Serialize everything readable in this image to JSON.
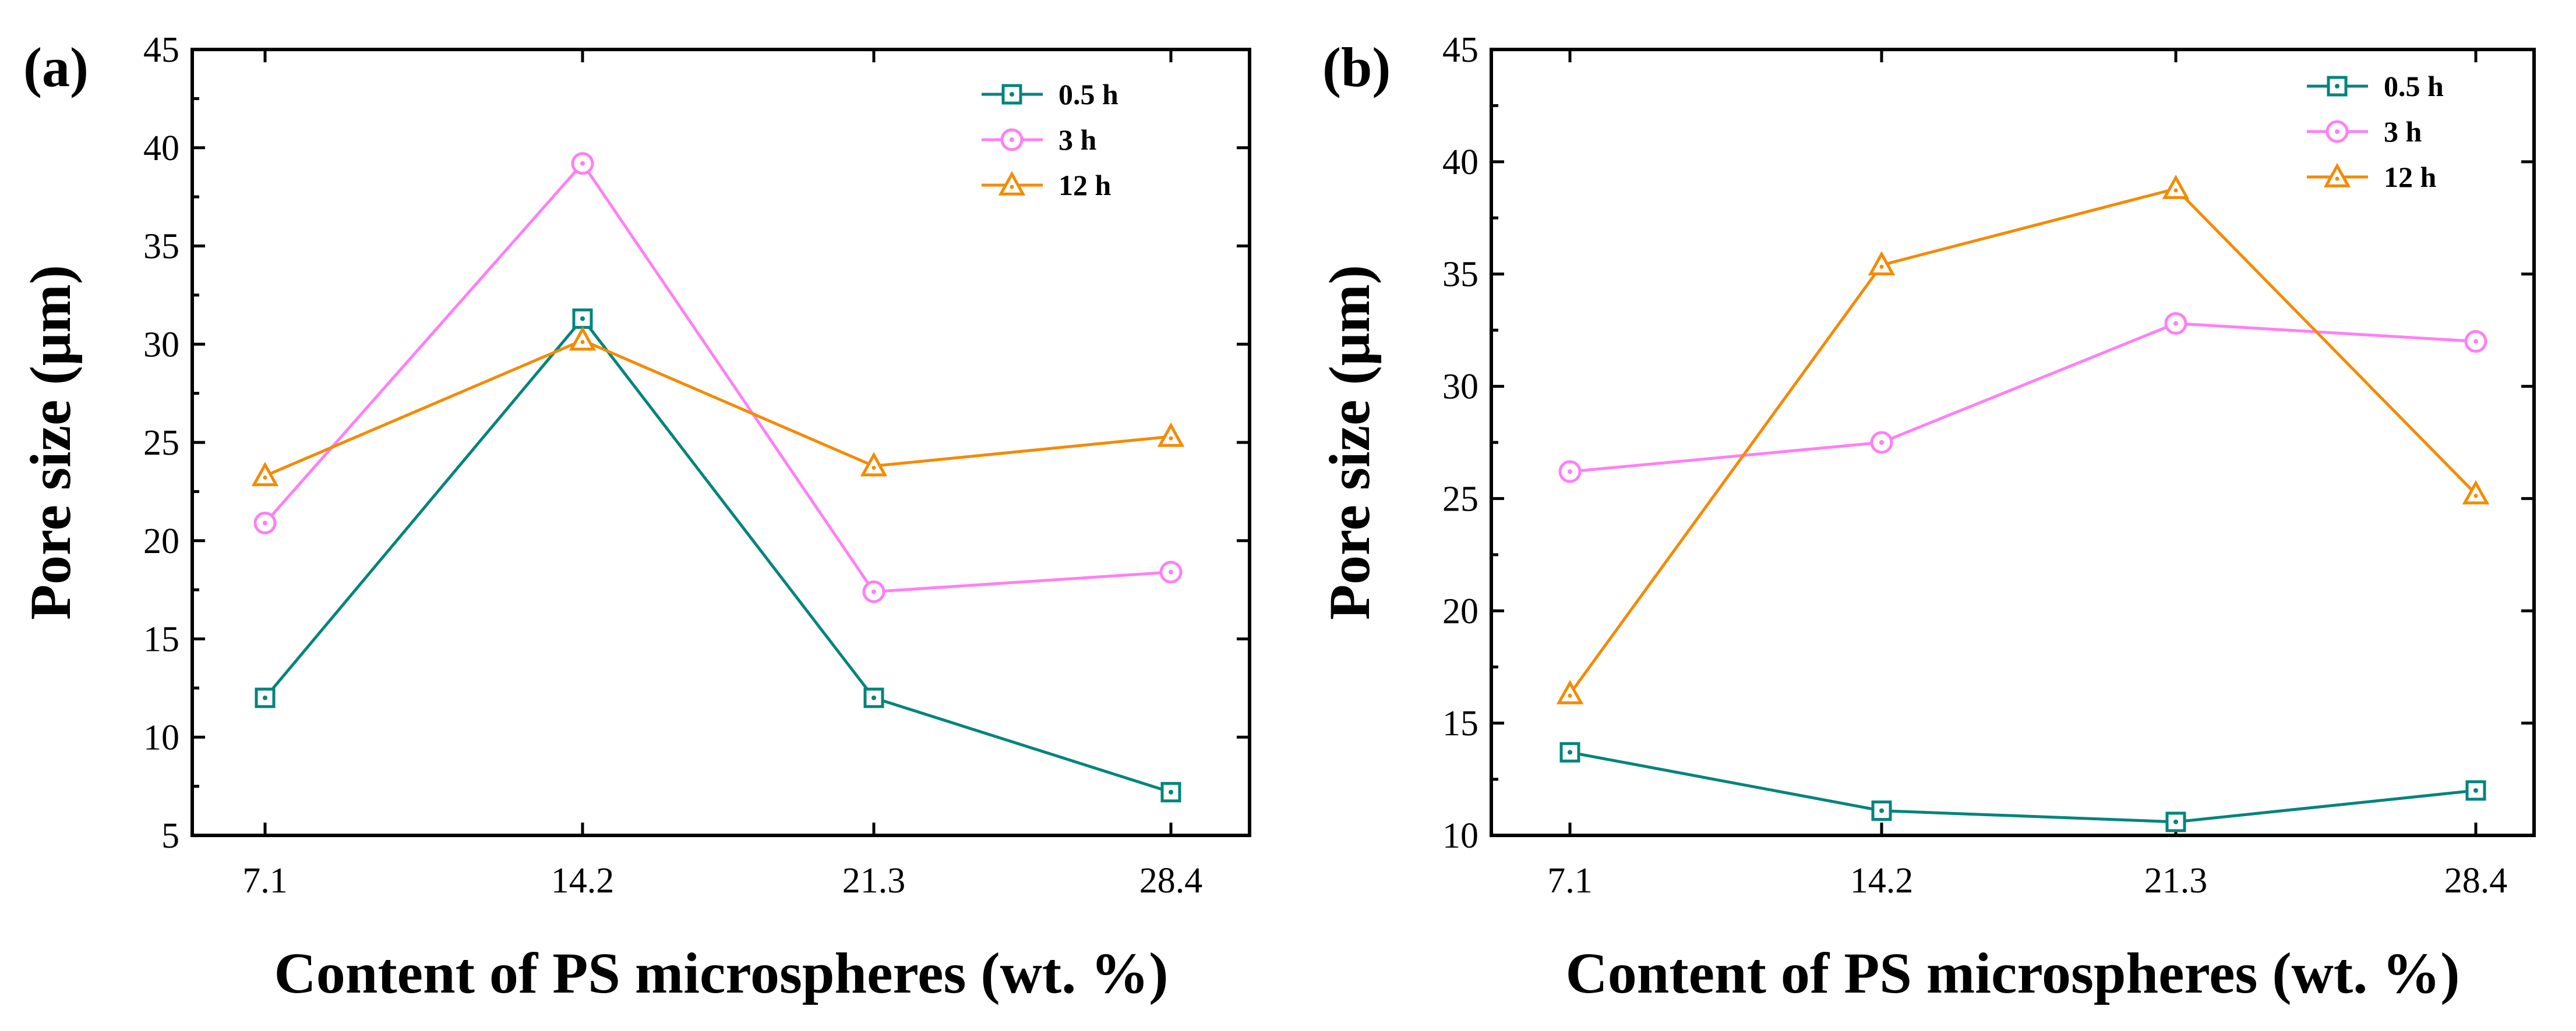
{
  "chart_data": [
    {
      "panel_label": "(a)",
      "type": "line",
      "categories": [
        "7.1",
        "14.2",
        "21.3",
        "28.4"
      ],
      "xlabel": "Content of PS microspheres (wt. %)",
      "ylabel": "Pore size (μm)",
      "ylim": [
        5,
        45
      ],
      "yticks": [
        "5",
        "10",
        "15",
        "20",
        "25",
        "30",
        "35",
        "40",
        "45"
      ],
      "legend_position": "top-right",
      "series": [
        {
          "name": "0.5 h",
          "color": "#00847c",
          "marker": "square",
          "values": [
            12.0,
            31.3,
            12.0,
            7.2
          ]
        },
        {
          "name": "3 h",
          "color": "#ff7ff5",
          "marker": "circle",
          "values": [
            20.9,
            39.2,
            17.4,
            18.4
          ]
        },
        {
          "name": "12 h",
          "color": "#f58a00",
          "marker": "triangle",
          "values": [
            23.3,
            30.2,
            23.8,
            25.3
          ]
        }
      ]
    },
    {
      "panel_label": "(b)",
      "type": "line",
      "categories": [
        "7.1",
        "14.2",
        "21.3",
        "28.4"
      ],
      "xlabel": "Content of PS microspheres (wt. %)",
      "ylabel": "Pore size (μm)",
      "ylim": [
        10,
        45
      ],
      "yticks": [
        "10",
        "15",
        "20",
        "25",
        "30",
        "35",
        "40",
        "45"
      ],
      "legend_position": "top-right",
      "series": [
        {
          "name": "0.5 h",
          "color": "#00847c",
          "marker": "square",
          "values": [
            13.7,
            11.1,
            10.6,
            12.0
          ]
        },
        {
          "name": "3 h",
          "color": "#ff7ff5",
          "marker": "circle",
          "values": [
            26.2,
            27.5,
            32.8,
            32.0
          ]
        },
        {
          "name": "12 h",
          "color": "#f58a00",
          "marker": "triangle",
          "values": [
            16.3,
            35.4,
            38.8,
            25.2
          ]
        }
      ]
    }
  ]
}
